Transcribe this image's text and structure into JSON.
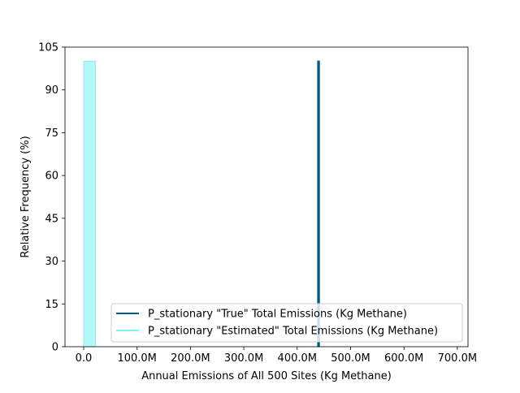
{
  "chart_data": {
    "type": "histogram",
    "title": "",
    "xlabel": "Annual Emissions of All 500 Sites (Kg Methane)",
    "ylabel": "Relative Frequency (%)",
    "xlim": [
      -35000000,
      720000000
    ],
    "ylim": [
      0,
      105
    ],
    "x_ticks": [
      0,
      100000000,
      200000000,
      300000000,
      400000000,
      500000000,
      600000000,
      700000000
    ],
    "x_tick_labels": [
      "0.0",
      "100.0M",
      "200.0M",
      "300.0M",
      "400.0M",
      "500.0M",
      "600.0M",
      "700.0M"
    ],
    "y_ticks": [
      0,
      15,
      30,
      45,
      60,
      75,
      90,
      105
    ],
    "y_tick_labels": [
      "0",
      "15",
      "30",
      "45",
      "60",
      "75",
      "90",
      "105"
    ],
    "grid": false,
    "legend_position": "lower-right",
    "series": [
      {
        "name": "P_stationary \"True\" Total Emissions (Kg Methane)",
        "color": "#005a87",
        "style": "step-line",
        "bins": [
          {
            "x_start": 439000000,
            "x_end": 441000000,
            "value": 100
          }
        ]
      },
      {
        "name": "P_stationary \"Estimated\" Total Emissions (Kg Methane)",
        "color": "#7ff0f8",
        "fill": "#b3f8fb",
        "style": "filled-bar",
        "bins": [
          {
            "x_start": 0,
            "x_end": 22000000,
            "value": 100
          }
        ]
      }
    ]
  }
}
